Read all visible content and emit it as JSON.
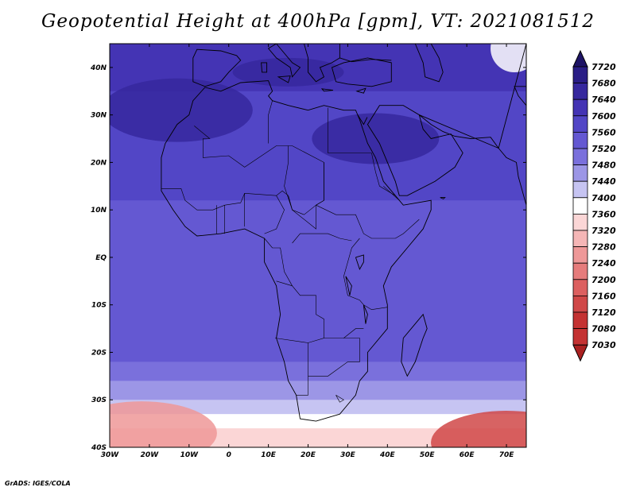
{
  "title": "Geopotential Height at 400hPa [gpm], VT: 2021081512",
  "credit": "GrADS: IGES/COLA",
  "map": {
    "lon_range": [
      -30,
      75
    ],
    "lat_range": [
      -40,
      45
    ],
    "lon_ticks": [
      {
        "value": -30,
        "label": "30W"
      },
      {
        "value": -20,
        "label": "20W"
      },
      {
        "value": -10,
        "label": "10W"
      },
      {
        "value": 0,
        "label": "0"
      },
      {
        "value": 10,
        "label": "10E"
      },
      {
        "value": 20,
        "label": "20E"
      },
      {
        "value": 30,
        "label": "30E"
      },
      {
        "value": 40,
        "label": "40E"
      },
      {
        "value": 50,
        "label": "50E"
      },
      {
        "value": 60,
        "label": "60E"
      },
      {
        "value": 70,
        "label": "70E"
      }
    ],
    "lat_ticks": [
      {
        "value": 40,
        "label": "40N"
      },
      {
        "value": 30,
        "label": "30N"
      },
      {
        "value": 20,
        "label": "20N"
      },
      {
        "value": 10,
        "label": "10N"
      },
      {
        "value": 0,
        "label": "EQ"
      },
      {
        "value": -10,
        "label": "10S"
      },
      {
        "value": -20,
        "label": "20S"
      },
      {
        "value": -30,
        "label": "30S"
      },
      {
        "value": -40,
        "label": "40S"
      }
    ],
    "height_bands": [
      {
        "lat_min": 35,
        "lat_max": 45,
        "level": 7600
      },
      {
        "lat_min": 12,
        "lat_max": 35,
        "level": 7560
      },
      {
        "lat_min": -22,
        "lat_max": 12,
        "level": 7520
      },
      {
        "lat_min": -26,
        "lat_max": -22,
        "level": 7480
      },
      {
        "lat_min": -30,
        "lat_max": -26,
        "level": 7440
      },
      {
        "lat_min": -33,
        "lat_max": -30,
        "level": 7400
      },
      {
        "lat_min": -36,
        "lat_max": -33,
        "level": 7360
      },
      {
        "lat_min": -40,
        "lat_max": -36,
        "level": 7320
      }
    ],
    "features": [
      {
        "name": "high-north-africa",
        "lon": -13,
        "lat": 31,
        "level": 7640
      },
      {
        "name": "high-arabia",
        "lon": 37,
        "lat": 25,
        "level": 7640
      },
      {
        "name": "high-mediterranean",
        "lon": 15,
        "lat": 39,
        "level": 7640
      },
      {
        "name": "low-south-atlantic",
        "lon": -22,
        "lat": -37,
        "level": 7240
      },
      {
        "name": "low-south-indian",
        "lon": 70,
        "lat": -39,
        "level": 7120
      },
      {
        "name": "low-northeast-corner",
        "lon": 72,
        "lat": 44,
        "level": 7360
      }
    ]
  },
  "colorbar": {
    "levels": [
      {
        "label": "7720",
        "color": "#1e1466"
      },
      {
        "label": "7680",
        "color": "#2a1e86"
      },
      {
        "label": "7640",
        "color": "#36289e"
      },
      {
        "label": "7600",
        "color": "#4434b4"
      },
      {
        "label": "7560",
        "color": "#5246c6"
      },
      {
        "label": "7520",
        "color": "#6458d2"
      },
      {
        "label": "7480",
        "color": "#7a70dc"
      },
      {
        "label": "7440",
        "color": "#9c96e6"
      },
      {
        "label": "7400",
        "color": "#c6c4f2"
      },
      {
        "label": "7360",
        "color": "#ffffff"
      },
      {
        "label": "7320",
        "color": "#fbd6d6"
      },
      {
        "label": "7280",
        "color": "#f5b6b6"
      },
      {
        "label": "7240",
        "color": "#ee9898"
      },
      {
        "label": "7200",
        "color": "#e67c7c"
      },
      {
        "label": "7160",
        "color": "#dc6060"
      },
      {
        "label": "7120",
        "color": "#d04848"
      },
      {
        "label": "7080",
        "color": "#c43232"
      },
      {
        "label": "7030",
        "color": "#aa2020"
      }
    ]
  }
}
